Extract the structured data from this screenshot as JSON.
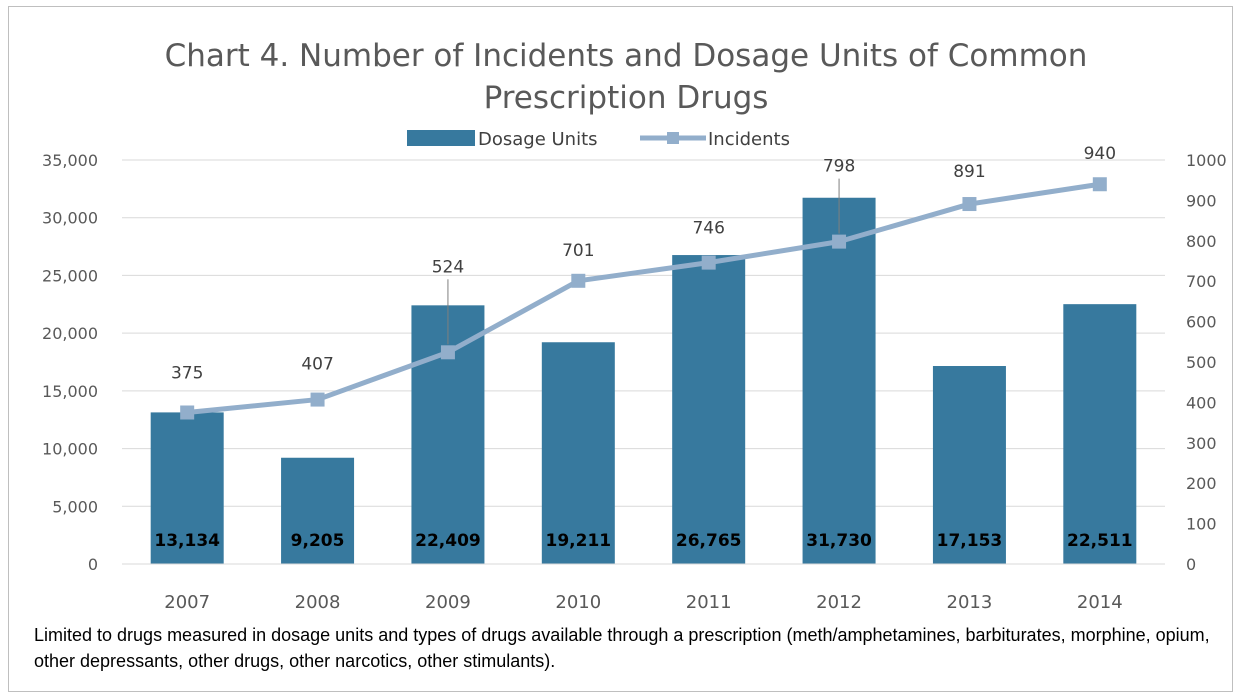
{
  "chart_data": {
    "type": "bar",
    "title_line1": "Chart 4. Number of Incidents and Dosage Units of Common",
    "title_line2": "Prescription Drugs",
    "categories": [
      "2007",
      "2008",
      "2009",
      "2010",
      "2011",
      "2012",
      "2013",
      "2014"
    ],
    "series": [
      {
        "name": "Dosage Units",
        "type": "bar",
        "axis": "left",
        "color": "#37799e",
        "values": [
          13134,
          9205,
          22409,
          19211,
          26765,
          31730,
          17153,
          22511
        ],
        "labels": [
          "13,134",
          "9,205",
          "22,409",
          "19,211",
          "26,765",
          "31,730",
          "17,153",
          "22,511"
        ]
      },
      {
        "name": "Incidents",
        "type": "line",
        "axis": "right",
        "color": "#92aecb",
        "values": [
          375,
          407,
          524,
          701,
          746,
          798,
          891,
          940
        ],
        "labels": [
          "375",
          "407",
          "524",
          "701",
          "746",
          "798",
          "891",
          "940"
        ]
      }
    ],
    "left_axis": {
      "ylim": [
        0,
        35000
      ],
      "ticks": [
        "0",
        "5,000",
        "10,000",
        "15,000",
        "20,000",
        "25,000",
        "30,000",
        "35,000"
      ]
    },
    "right_axis": {
      "ylim": [
        0,
        1000
      ],
      "ticks": [
        "0",
        "100",
        "200",
        "300",
        "400",
        "500",
        "600",
        "700",
        "800",
        "900",
        "1000"
      ]
    },
    "legend_position": "top",
    "grid": true
  },
  "note": "Limited to drugs measured in dosage units and types of drugs available through a prescription (meth/amphetamines, barbiturates, morphine, opium, other depressants, other drugs, other narcotics, other stimulants)."
}
